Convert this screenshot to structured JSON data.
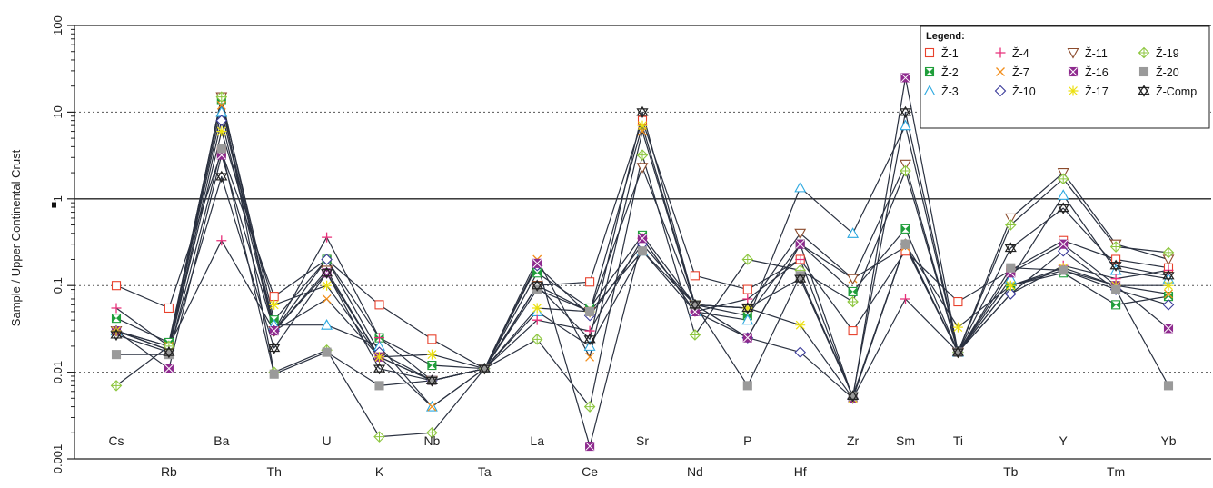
{
  "chart_data": {
    "type": "line",
    "ylabel": "Sample / Upper Continental Crust",
    "yscale": "log",
    "ylim": [
      0.001,
      100
    ],
    "yticks": [
      "0.001",
      "0.01",
      "0.1",
      "1",
      "10",
      "100"
    ],
    "elements_top": [
      "Cs",
      "Ba",
      "U",
      "Nb",
      "La",
      "Sr",
      "P",
      "Zr",
      "Sm",
      "Ti",
      "Y",
      "Yb"
    ],
    "elements_bottom": [
      "Rb",
      "Th",
      "K",
      "Ta",
      "Ce",
      "Nd",
      "Hf",
      "Tb",
      "Tm"
    ],
    "categories": [
      "Cs",
      "Rb",
      "Ba",
      "Th",
      "U",
      "K",
      "Nb",
      "Ta",
      "La",
      "Ce",
      "Sr",
      "Nd",
      "P",
      "Hf",
      "Zr",
      "Sm",
      "Ti",
      "Tb",
      "Y",
      "Tm",
      "Yb"
    ],
    "extra_point": {
      "value": 0.85
    },
    "legend": {
      "title": "Legend:",
      "position": "top-right"
    },
    "series": [
      {
        "name": "Ž-1",
        "color": "#e8412c",
        "marker": "square",
        "values": [
          0.1,
          0.055,
          3.5,
          0.075,
          0.2,
          0.06,
          0.024,
          0.011,
          0.1,
          0.11,
          8,
          0.13,
          0.09,
          0.2,
          0.03,
          0.25,
          0.065,
          0.15,
          0.33,
          0.2,
          0.16
        ]
      },
      {
        "name": "Ž-2",
        "color": "#1f9e3a",
        "marker": "bowtie",
        "values": [
          0.042,
          0.022,
          14,
          0.04,
          0.2,
          0.025,
          0.012,
          0.011,
          0.14,
          0.055,
          0.38,
          0.06,
          0.045,
          0.3,
          0.085,
          0.45,
          0.017,
          0.1,
          0.14,
          0.06,
          0.075
        ]
      },
      {
        "name": "Ž-3",
        "color": "#2ba8e0",
        "marker": "triangle",
        "values": [
          0.03,
          0.02,
          10,
          0.035,
          0.035,
          0.02,
          0.004,
          0.011,
          0.05,
          0.02,
          0.25,
          0.05,
          0.04,
          1.35,
          0.4,
          7,
          0.017,
          0.12,
          1.1,
          0.15,
          0.12
        ]
      },
      {
        "name": "Ž-4",
        "color": "#e8307a",
        "marker": "plus",
        "values": [
          0.055,
          0.02,
          0.33,
          0.03,
          0.36,
          0.025,
          0.008,
          0.011,
          0.04,
          0.03,
          0.35,
          0.05,
          0.07,
          0.2,
          0.005,
          0.07,
          0.017,
          0.08,
          0.17,
          0.12,
          0.15
        ]
      },
      {
        "name": "Ž-7",
        "color": "#f28e1c",
        "marker": "x",
        "values": [
          0.03,
          0.02,
          12,
          0.03,
          0.07,
          0.015,
          0.004,
          0.011,
          0.2,
          0.015,
          6,
          0.06,
          0.025,
          0.3,
          0.12,
          0.28,
          0.017,
          0.1,
          0.15,
          0.1,
          0.08
        ]
      },
      {
        "name": "Ž-10",
        "color": "#3a3a9a",
        "marker": "diamond",
        "values": [
          0.03,
          0.018,
          8,
          0.03,
          0.2,
          0.017,
          0.008,
          0.011,
          0.17,
          0.045,
          0.3,
          0.06,
          0.025,
          0.017,
          0.005,
          0.3,
          0.017,
          0.08,
          0.25,
          0.09,
          0.06
        ]
      },
      {
        "name": "Ž-11",
        "color": "#8b4a2b",
        "marker": "triangle-down",
        "values": [
          0.03,
          0.018,
          15,
          0.03,
          0.15,
          0.015,
          0.008,
          0.011,
          0.1,
          0.05,
          2.3,
          0.06,
          0.055,
          0.4,
          0.12,
          2.5,
          0.017,
          0.6,
          2,
          0.3,
          0.2
        ]
      },
      {
        "name": "Ž-16",
        "color": "#8e2a8e",
        "marker": "boxx",
        "values": [
          0.03,
          0.011,
          3.2,
          0.03,
          0.14,
          0.015,
          0.008,
          0.011,
          0.18,
          0.0014,
          0.35,
          0.05,
          0.025,
          0.3,
          0.005,
          25,
          0.017,
          0.14,
          0.3,
          0.1,
          0.032
        ]
      },
      {
        "name": "Ž-17",
        "color": "#ece010",
        "marker": "star",
        "values": [
          0.03,
          0.018,
          6,
          0.06,
          0.1,
          0.015,
          0.016,
          0.011,
          0.055,
          0.05,
          7,
          0.06,
          0.055,
          0.035,
          0.005,
          0.3,
          0.033,
          0.1,
          0.16,
          0.1,
          0.1
        ]
      },
      {
        "name": "Ž-19",
        "color": "#8dc63f",
        "marker": "diamondx",
        "values": [
          0.007,
          0.02,
          15,
          0.01,
          0.018,
          0.0018,
          0.002,
          0.011,
          0.024,
          0.004,
          3.2,
          0.027,
          0.2,
          0.15,
          0.065,
          2.1,
          0.017,
          0.5,
          1.7,
          0.28,
          0.24
        ]
      },
      {
        "name": "Ž-20",
        "color": "#9a9a9a",
        "marker": "filledsquare",
        "values": [
          0.016,
          0.016,
          3.8,
          0.0095,
          0.017,
          0.007,
          0.008,
          0.011,
          0.09,
          0.05,
          0.25,
          0.06,
          0.007,
          0.13,
          0.0053,
          0.3,
          0.017,
          0.16,
          0.15,
          0.09,
          0.007
        ]
      },
      {
        "name": "Ž-Comp",
        "color": "#222222",
        "marker": "hexstar",
        "values": [
          0.027,
          0.017,
          1.8,
          0.019,
          0.14,
          0.011,
          0.008,
          0.011,
          0.1,
          0.024,
          10,
          0.06,
          0.055,
          0.12,
          0.0053,
          10,
          0.017,
          0.27,
          0.78,
          0.17,
          0.13
        ]
      }
    ]
  }
}
